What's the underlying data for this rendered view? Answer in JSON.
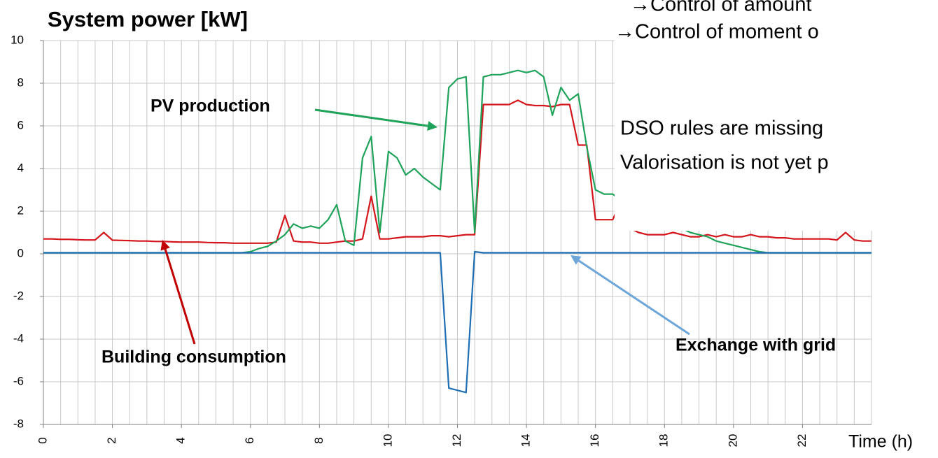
{
  "chart_data": {
    "type": "line",
    "title": "System power [kW]",
    "xlabel": "Time (h)",
    "xlim": [
      0,
      24
    ],
    "ylim": [
      -8,
      10
    ],
    "xticks": [
      0,
      2,
      4,
      6,
      8,
      10,
      12,
      14,
      16,
      18,
      20,
      22
    ],
    "yticks": [
      -8,
      -6,
      -4,
      -2,
      0,
      2,
      4,
      6,
      8,
      10
    ],
    "xgrid_step": 0.5,
    "grid": true,
    "x": [
      0,
      0.25,
      0.5,
      0.75,
      1,
      1.25,
      1.5,
      1.75,
      2,
      2.25,
      2.5,
      2.75,
      3,
      3.25,
      3.5,
      3.75,
      4,
      4.25,
      4.5,
      4.75,
      5,
      5.25,
      5.5,
      5.75,
      6,
      6.25,
      6.5,
      6.75,
      7,
      7.25,
      7.5,
      7.75,
      8,
      8.25,
      8.5,
      8.75,
      9,
      9.25,
      9.5,
      9.75,
      10,
      10.25,
      10.5,
      10.75,
      11,
      11.25,
      11.5,
      11.75,
      12,
      12.25,
      12.5,
      12.75,
      13,
      13.25,
      13.5,
      13.75,
      14,
      14.25,
      14.5,
      14.75,
      15,
      15.25,
      15.5,
      15.75,
      16,
      16.25,
      16.5,
      16.75,
      17,
      17.25,
      17.5,
      17.75,
      18,
      18.25,
      18.5,
      18.75,
      19,
      19.25,
      19.5,
      19.75,
      20,
      20.25,
      20.5,
      20.75,
      21,
      21.25,
      21.5,
      21.75,
      22,
      22.25,
      22.5,
      22.75,
      23,
      23.25,
      23.5,
      23.75,
      24
    ],
    "series": [
      {
        "name": "Building consumption",
        "color": "#d4161c",
        "values": [
          0.7,
          0.7,
          0.68,
          0.68,
          0.66,
          0.65,
          0.65,
          1.0,
          0.64,
          0.63,
          0.62,
          0.6,
          0.6,
          0.58,
          0.58,
          0.56,
          0.55,
          0.55,
          0.55,
          0.53,
          0.52,
          0.52,
          0.5,
          0.5,
          0.5,
          0.5,
          0.5,
          0.55,
          1.8,
          0.6,
          0.55,
          0.55,
          0.5,
          0.5,
          0.55,
          0.6,
          0.6,
          0.7,
          2.7,
          0.7,
          0.7,
          0.75,
          0.8,
          0.8,
          0.8,
          0.85,
          0.85,
          0.8,
          0.85,
          0.9,
          0.9,
          7.0,
          7.0,
          7.0,
          7.0,
          7.2,
          7.0,
          6.95,
          6.95,
          6.9,
          7.0,
          7.0,
          5.1,
          5.1,
          1.6,
          1.6,
          1.6,
          2.5,
          1.2,
          1.0,
          0.9,
          0.9,
          0.9,
          1.0,
          0.9,
          0.8,
          0.8,
          0.9,
          0.8,
          0.9,
          0.8,
          0.8,
          0.9,
          0.8,
          0.8,
          0.75,
          0.75,
          0.7,
          0.7,
          0.7,
          0.7,
          0.7,
          0.65,
          1.0,
          0.65,
          0.6,
          0.6
        ]
      },
      {
        "name": "PV production",
        "color": "#1fa25a",
        "values": [
          0.05,
          0.05,
          0.05,
          0.05,
          0.05,
          0.05,
          0.05,
          0.05,
          0.05,
          0.05,
          0.05,
          0.05,
          0.05,
          0.05,
          0.05,
          0.05,
          0.05,
          0.05,
          0.05,
          0.05,
          0.05,
          0.05,
          0.05,
          0.05,
          0.1,
          0.25,
          0.35,
          0.6,
          0.9,
          1.4,
          1.2,
          1.3,
          1.2,
          1.6,
          2.3,
          0.6,
          0.4,
          4.5,
          5.5,
          1.0,
          4.8,
          4.5,
          3.7,
          4.0,
          3.6,
          3.3,
          3.0,
          7.8,
          8.2,
          8.3,
          1.0,
          8.3,
          8.4,
          8.4,
          8.5,
          8.6,
          8.5,
          8.6,
          8.3,
          6.5,
          7.8,
          7.2,
          7.5,
          5.0,
          3.0,
          2.8,
          2.8,
          2.5,
          2.2,
          2.0,
          1.8,
          1.6,
          1.4,
          1.3,
          1.2,
          1.0,
          0.9,
          0.8,
          0.6,
          0.5,
          0.4,
          0.3,
          0.2,
          0.1,
          0.05,
          0.05,
          0.05,
          0.05,
          0.05,
          0.05,
          0.05,
          0.05,
          0.05,
          0.05,
          0.05,
          0.05,
          0.05
        ]
      },
      {
        "name": "Exchange with grid",
        "color": "#1f6eb4",
        "values": [
          0.05,
          0.05,
          0.05,
          0.05,
          0.05,
          0.05,
          0.05,
          0.05,
          0.05,
          0.05,
          0.05,
          0.05,
          0.05,
          0.05,
          0.05,
          0.05,
          0.05,
          0.05,
          0.05,
          0.05,
          0.05,
          0.05,
          0.05,
          0.05,
          0.05,
          0.05,
          0.05,
          0.05,
          0.05,
          0.05,
          0.05,
          0.05,
          0.05,
          0.05,
          0.05,
          0.05,
          0.05,
          0.05,
          0.05,
          0.05,
          0.05,
          0.05,
          0.05,
          0.05,
          0.05,
          0.05,
          0.05,
          -6.3,
          -6.4,
          -6.5,
          0.1,
          0.05,
          0.05,
          0.05,
          0.05,
          0.05,
          0.05,
          0.05,
          0.05,
          0.05,
          0.05,
          0.05,
          0.05,
          0.05,
          0.05,
          0.05,
          0.05,
          0.05,
          0.05,
          0.05,
          0.05,
          0.05,
          0.05,
          0.05,
          0.05,
          0.05,
          0.05,
          0.05,
          0.05,
          0.05,
          0.05,
          0.05,
          0.05,
          0.05,
          0.05,
          0.05,
          0.05,
          0.05,
          0.05,
          0.05,
          0.05,
          0.05,
          0.05,
          0.05,
          0.05,
          0.05,
          0.05
        ]
      }
    ],
    "annotations": [
      "PV production",
      "Building consumption",
      "Exchange with grid"
    ]
  },
  "slide": {
    "bullets": [
      "→Control of amount",
      "→Control of moment o"
    ],
    "notes": [
      "DSO rules are missing",
      "Valorisation is not yet p"
    ]
  }
}
